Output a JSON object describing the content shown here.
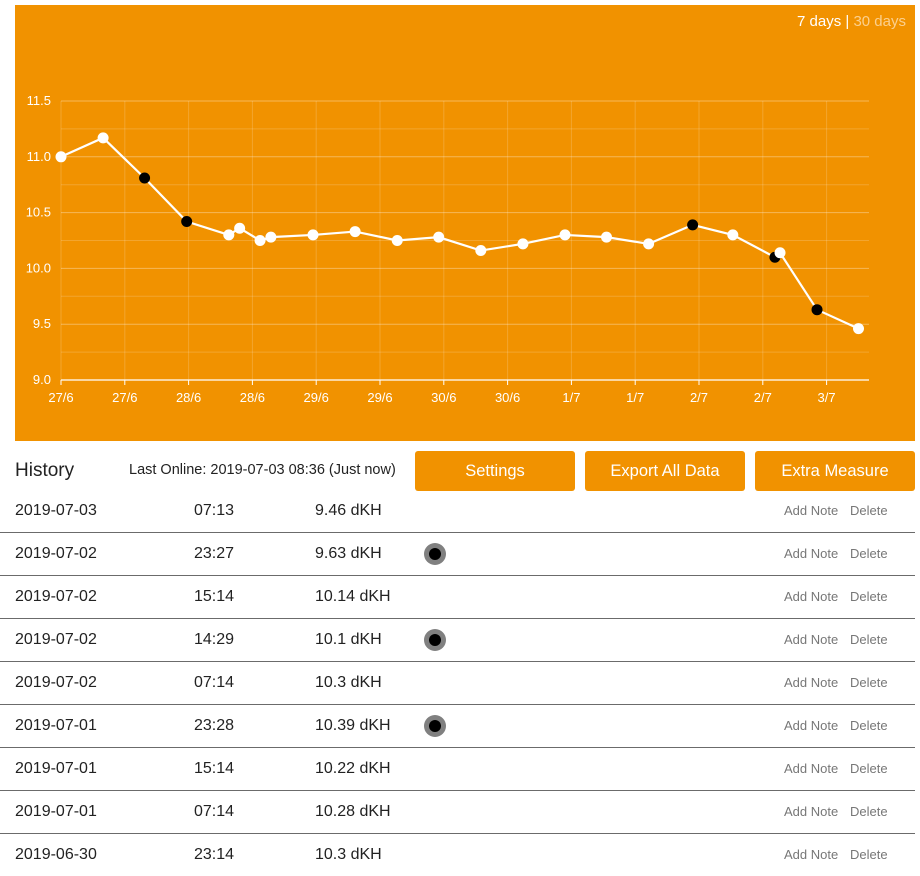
{
  "range_toggle": {
    "active": "7 days",
    "separator": "|",
    "inactive": "30 days"
  },
  "colors": {
    "accent": "#f19200",
    "line": "#ffffff",
    "marked_point": "#000000"
  },
  "chart_data": {
    "type": "line",
    "ylim": [
      9.0,
      11.5
    ],
    "y_ticks": [
      "9.0",
      "9.5",
      "10.0",
      "10.5",
      "11.0",
      "11.5"
    ],
    "x_tick_labels": [
      "27/6",
      "27/6",
      "28/6",
      "28/6",
      "29/6",
      "29/6",
      "30/6",
      "30/6",
      "1/7",
      "1/7",
      "2/7",
      "2/7",
      "3/7"
    ],
    "grid": true,
    "series": [
      {
        "values": [
          11.0,
          11.17,
          10.81,
          10.42,
          10.3,
          10.36,
          10.25,
          10.28,
          10.3,
          10.33,
          10.25,
          10.28,
          10.16,
          10.22,
          10.3,
          10.28,
          10.22,
          10.39,
          10.3,
          10.1,
          10.14,
          9.63,
          9.46
        ],
        "x_index": [
          0,
          0.66,
          1.31,
          1.97,
          2.63,
          2.8,
          3.12,
          3.29,
          3.95,
          4.61,
          5.27,
          5.92,
          6.58,
          7.24,
          7.9,
          8.55,
          9.21,
          9.9,
          10.53,
          11.19,
          11.27,
          11.85,
          12.5
        ],
        "marked": [
          false,
          false,
          true,
          true,
          false,
          false,
          false,
          false,
          false,
          false,
          false,
          false,
          false,
          false,
          false,
          false,
          false,
          true,
          false,
          true,
          false,
          true,
          false
        ]
      }
    ]
  },
  "toolbar": {
    "title": "History",
    "last_online": "Last Online: 2019-07-03 08:36 (Just now)",
    "settings_label": "Settings",
    "export_label": "Export All Data",
    "extra_label": "Extra Measure"
  },
  "history": [
    {
      "date": "2019-07-03",
      "time": "07:13",
      "value": "9.46 dKH",
      "marked": false
    },
    {
      "date": "2019-07-02",
      "time": "23:27",
      "value": "9.63 dKH",
      "marked": true
    },
    {
      "date": "2019-07-02",
      "time": "15:14",
      "value": "10.14 dKH",
      "marked": false
    },
    {
      "date": "2019-07-02",
      "time": "14:29",
      "value": "10.1 dKH",
      "marked": true
    },
    {
      "date": "2019-07-02",
      "time": "07:14",
      "value": "10.3 dKH",
      "marked": false
    },
    {
      "date": "2019-07-01",
      "time": "23:28",
      "value": "10.39 dKH",
      "marked": true
    },
    {
      "date": "2019-07-01",
      "time": "15:14",
      "value": "10.22 dKH",
      "marked": false
    },
    {
      "date": "2019-07-01",
      "time": "07:14",
      "value": "10.28 dKH",
      "marked": false
    },
    {
      "date": "2019-06-30",
      "time": "23:14",
      "value": "10.3 dKH",
      "marked": false
    }
  ],
  "row_actions": {
    "add_note": "Add Note",
    "delete": "Delete"
  }
}
